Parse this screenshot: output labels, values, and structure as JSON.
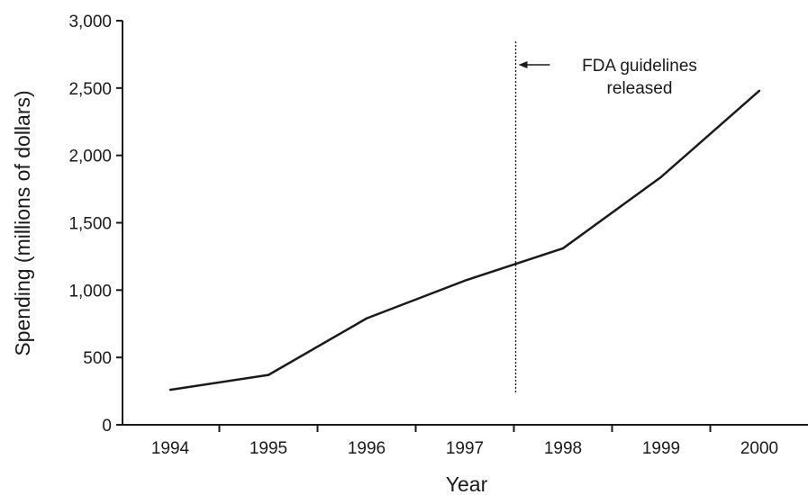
{
  "chart_data": {
    "type": "line",
    "title": "",
    "xlabel": "Year",
    "ylabel": "Spending (millions of dollars)",
    "categories": [
      "1994",
      "1995",
      "1996",
      "1997",
      "1998",
      "1999",
      "2000"
    ],
    "series": [
      {
        "values": [
          260,
          370,
          790,
          1070,
          1310,
          1840,
          2480
        ]
      }
    ],
    "ylim": [
      0,
      3000
    ],
    "yticks": [
      0,
      500,
      1000,
      1500,
      2000,
      2500,
      3000
    ],
    "ytick_labels": [
      "0",
      "500",
      "1,000",
      "1,500",
      "2,000",
      "2,500",
      "3,000"
    ],
    "grid": false,
    "annotation": {
      "line1": "FDA guidelines",
      "line2": "released",
      "x_position": "between 1997 and 1998"
    },
    "colors": {
      "line": "#1a1a1a",
      "axis": "#1a1a1a"
    }
  }
}
